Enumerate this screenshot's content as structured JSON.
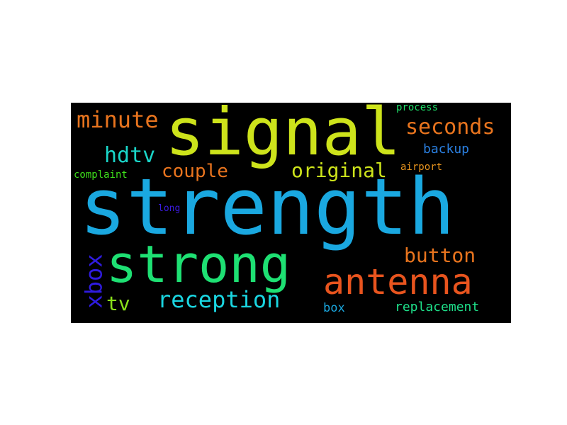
{
  "words": [
    {
      "text": "strength",
      "color": "#1aa8e0"
    },
    {
      "text": "signal",
      "color": "#cde31b"
    },
    {
      "text": "strong",
      "color": "#1ee073"
    },
    {
      "text": "antenna",
      "color": "#e8541e"
    },
    {
      "text": "original",
      "color": "#cde31b"
    },
    {
      "text": "seconds",
      "color": "#e8741e"
    },
    {
      "text": "minute",
      "color": "#e8741e"
    },
    {
      "text": "reception",
      "color": "#1ad5e0"
    },
    {
      "text": "couple",
      "color": "#e8741e"
    },
    {
      "text": "button",
      "color": "#e8741e"
    },
    {
      "text": "hdtv",
      "color": "#1ad5c8"
    },
    {
      "text": "xbox",
      "color": "#2f1be0"
    },
    {
      "text": "tv",
      "color": "#8ae01b"
    },
    {
      "text": "replacement",
      "color": "#1ee08a"
    },
    {
      "text": "backup",
      "color": "#2a7fe0"
    },
    {
      "text": "box",
      "color": "#1aa8e0"
    },
    {
      "text": "complaint",
      "color": "#3ee01b"
    },
    {
      "text": "airport",
      "color": "#e8941e"
    },
    {
      "text": "process",
      "color": "#1ee06a"
    },
    {
      "text": "long",
      "color": "#3a1be0"
    }
  ]
}
